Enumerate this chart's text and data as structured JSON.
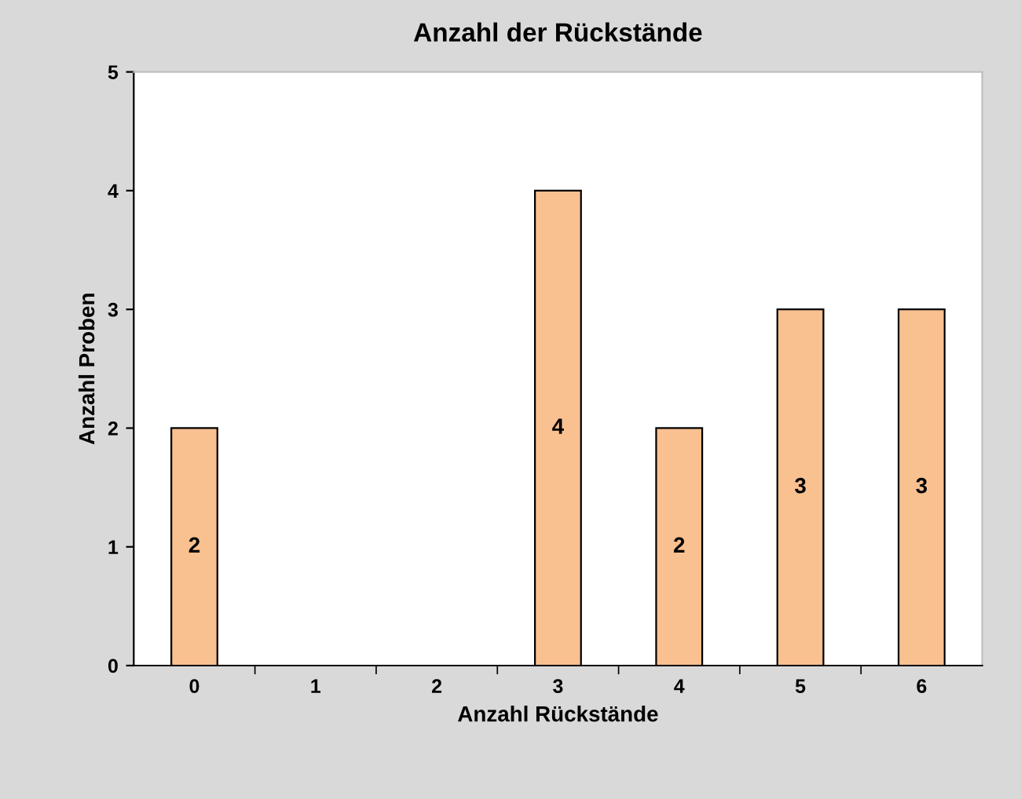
{
  "chart_data": {
    "type": "bar",
    "title": "Anzahl der Rückstände",
    "xlabel": "Anzahl Rückstände",
    "ylabel": "Anzahl Proben",
    "categories": [
      "0",
      "1",
      "2",
      "3",
      "4",
      "5",
      "6"
    ],
    "values": [
      2,
      null,
      null,
      4,
      2,
      3,
      3
    ],
    "color": "#f9c090",
    "ylim": [
      0,
      5
    ],
    "yticks": [
      0,
      1,
      2,
      3,
      4,
      5
    ],
    "grid": false,
    "legend": false,
    "data_labels": true
  }
}
